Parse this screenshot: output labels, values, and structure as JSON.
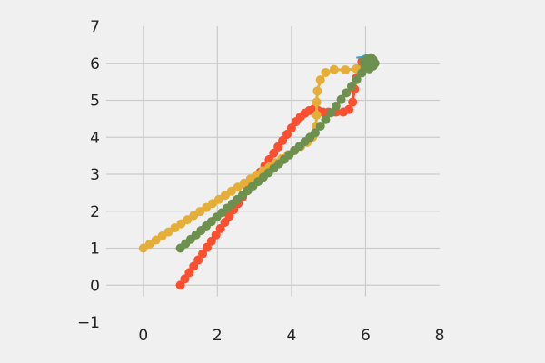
{
  "chart_data": {
    "type": "scatter",
    "title": "",
    "xlabel": "",
    "ylabel": "",
    "xlim": [
      -1,
      8
    ],
    "ylim": [
      -1,
      7
    ],
    "xticks": [
      0,
      2,
      4,
      6,
      8
    ],
    "yticks": [
      -1,
      0,
      1,
      2,
      3,
      4,
      5,
      6,
      7
    ],
    "grid": true,
    "legend": "none",
    "series": [
      {
        "color": "#fc4f30",
        "style": "markers-connected",
        "x": [
          1.0,
          1.12,
          1.24,
          1.36,
          1.48,
          1.6,
          1.72,
          1.84,
          1.96,
          2.08,
          2.2,
          2.32,
          2.44,
          2.56,
          2.68,
          2.8,
          2.92,
          3.04,
          3.16,
          3.28,
          3.4,
          3.52,
          3.64,
          3.76,
          3.88,
          4.0,
          4.12,
          4.24,
          4.36,
          4.48,
          4.6,
          4.72,
          4.85,
          5.0,
          5.2,
          5.4,
          5.55,
          5.65,
          5.7,
          5.75,
          5.8,
          5.9,
          6.0
        ],
        "y": [
          0.0,
          0.17,
          0.34,
          0.51,
          0.68,
          0.85,
          1.02,
          1.19,
          1.36,
          1.53,
          1.7,
          1.87,
          2.04,
          2.21,
          2.38,
          2.55,
          2.72,
          2.89,
          3.06,
          3.23,
          3.4,
          3.57,
          3.74,
          3.91,
          4.08,
          4.25,
          4.42,
          4.55,
          4.65,
          4.72,
          4.76,
          4.72,
          4.68,
          4.68,
          4.68,
          4.68,
          4.75,
          4.95,
          5.3,
          5.6,
          5.85,
          6.05,
          6.1
        ]
      },
      {
        "color": "#e5ae38",
        "style": "markers-connected",
        "x": [
          0.0,
          0.17,
          0.34,
          0.51,
          0.68,
          0.85,
          1.02,
          1.19,
          1.36,
          1.53,
          1.7,
          1.87,
          2.04,
          2.21,
          2.38,
          2.55,
          2.72,
          2.89,
          3.06,
          3.23,
          3.4,
          3.57,
          3.74,
          3.91,
          4.08,
          4.25,
          4.42,
          4.57,
          4.66,
          4.68,
          4.68,
          4.7,
          4.78,
          4.92,
          5.15,
          5.45,
          5.75,
          6.0,
          6.15
        ],
        "y": [
          1.0,
          1.11,
          1.22,
          1.33,
          1.44,
          1.55,
          1.66,
          1.77,
          1.88,
          1.99,
          2.1,
          2.21,
          2.32,
          2.43,
          2.54,
          2.65,
          2.76,
          2.87,
          2.98,
          3.09,
          3.2,
          3.31,
          3.42,
          3.53,
          3.64,
          3.75,
          3.86,
          4.0,
          4.3,
          4.6,
          4.95,
          5.25,
          5.55,
          5.75,
          5.83,
          5.82,
          5.85,
          5.95,
          6.05
        ]
      },
      {
        "color": "#30a2da",
        "style": "line",
        "x": [
          5.75,
          5.9,
          6.0,
          6.1,
          6.2,
          6.15,
          6.05
        ],
        "y": [
          6.15,
          6.17,
          6.22,
          6.18,
          6.12,
          6.05,
          6.0
        ]
      },
      {
        "color": "#6d904f",
        "style": "markers-connected",
        "x": [
          1.0,
          1.14,
          1.28,
          1.42,
          1.56,
          1.7,
          1.84,
          1.98,
          2.12,
          2.26,
          2.4,
          2.54,
          2.68,
          2.82,
          2.96,
          3.1,
          3.24,
          3.38,
          3.52,
          3.66,
          3.8,
          3.94,
          4.08,
          4.22,
          4.36,
          4.5,
          4.64,
          4.78,
          4.92,
          5.06,
          5.2,
          5.34,
          5.48,
          5.62,
          5.76,
          5.9,
          5.98,
          6.05,
          6.1,
          6.15,
          6.2,
          6.25,
          6.2,
          6.1,
          6.0,
          5.95,
          6.05,
          6.15,
          6.2,
          6.12,
          6.03,
          6.08,
          6.18,
          6.22
        ],
        "y": [
          1.0,
          1.12,
          1.24,
          1.36,
          1.48,
          1.6,
          1.72,
          1.84,
          1.96,
          2.08,
          2.2,
          2.32,
          2.44,
          2.56,
          2.68,
          2.8,
          2.92,
          3.04,
          3.16,
          3.28,
          3.4,
          3.52,
          3.64,
          3.76,
          3.88,
          4.0,
          4.12,
          4.3,
          4.48,
          4.66,
          4.84,
          5.02,
          5.2,
          5.38,
          5.56,
          5.74,
          5.9,
          6.0,
          6.08,
          6.15,
          6.1,
          6.0,
          5.92,
          5.85,
          5.95,
          6.05,
          6.12,
          6.1,
          6.02,
          5.96,
          6.04,
          6.14,
          6.08,
          5.98
        ]
      }
    ]
  }
}
